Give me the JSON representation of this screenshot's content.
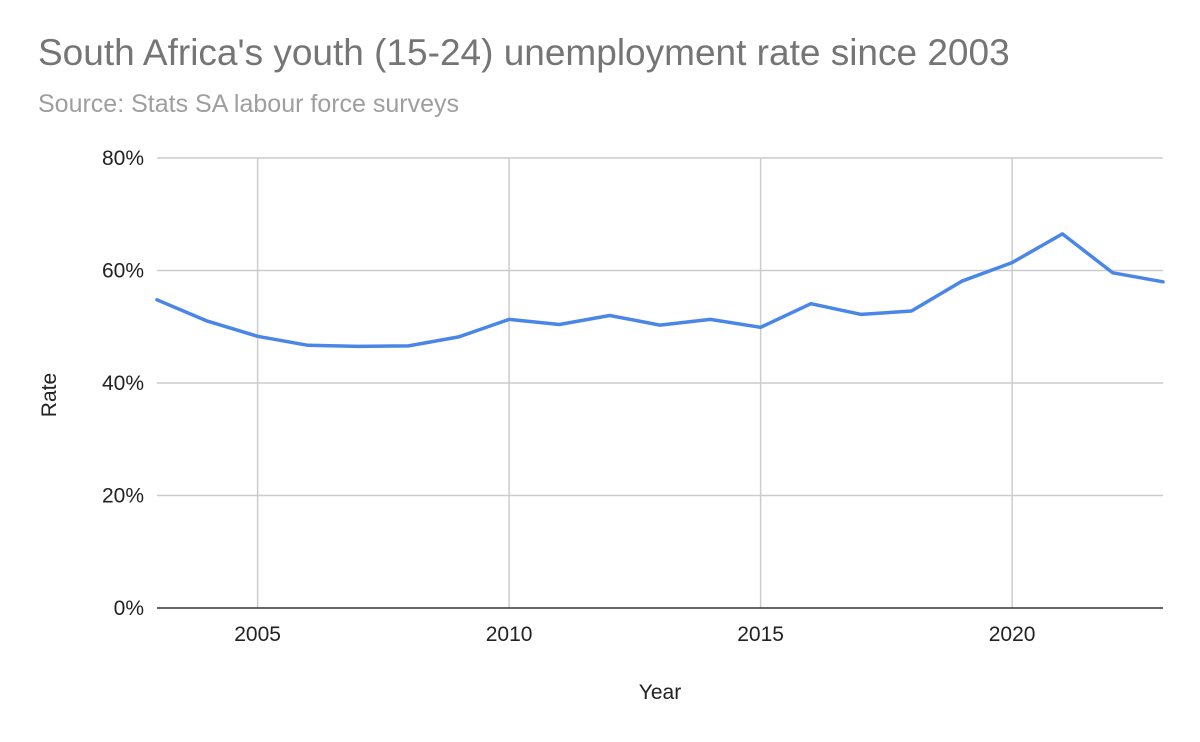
{
  "chart_data": {
    "type": "line",
    "title": "South Africa's youth (15-24) unemployment rate since 2003",
    "subtitle": "Source: Stats SA labour force surveys",
    "xlabel": "Year",
    "ylabel": "Rate",
    "xlim": [
      2003,
      2023
    ],
    "ylim": [
      0,
      80
    ],
    "x_ticks": [
      2005,
      2010,
      2015,
      2020
    ],
    "y_ticks": [
      0,
      20,
      40,
      60,
      80
    ],
    "y_tick_labels": [
      "0%",
      "20%",
      "40%",
      "60%",
      "80%"
    ],
    "grid": true,
    "legend": "none",
    "line_color": "#4a86e8",
    "gridline_color": "#cccccc",
    "axis_color": "#333333",
    "series": [
      {
        "x": [
          2003,
          2004,
          2005,
          2006,
          2007,
          2008,
          2009,
          2010,
          2011,
          2012,
          2013,
          2014,
          2015,
          2016,
          2017,
          2018,
          2019,
          2020,
          2021,
          2022,
          2023
        ],
        "values": [
          54.8,
          51.0,
          48.3,
          46.7,
          46.5,
          46.6,
          48.2,
          51.3,
          50.4,
          52.0,
          50.3,
          51.3,
          49.9,
          54.1,
          52.2,
          52.8,
          58.1,
          61.4,
          66.5,
          59.6,
          58.0
        ]
      }
    ]
  }
}
